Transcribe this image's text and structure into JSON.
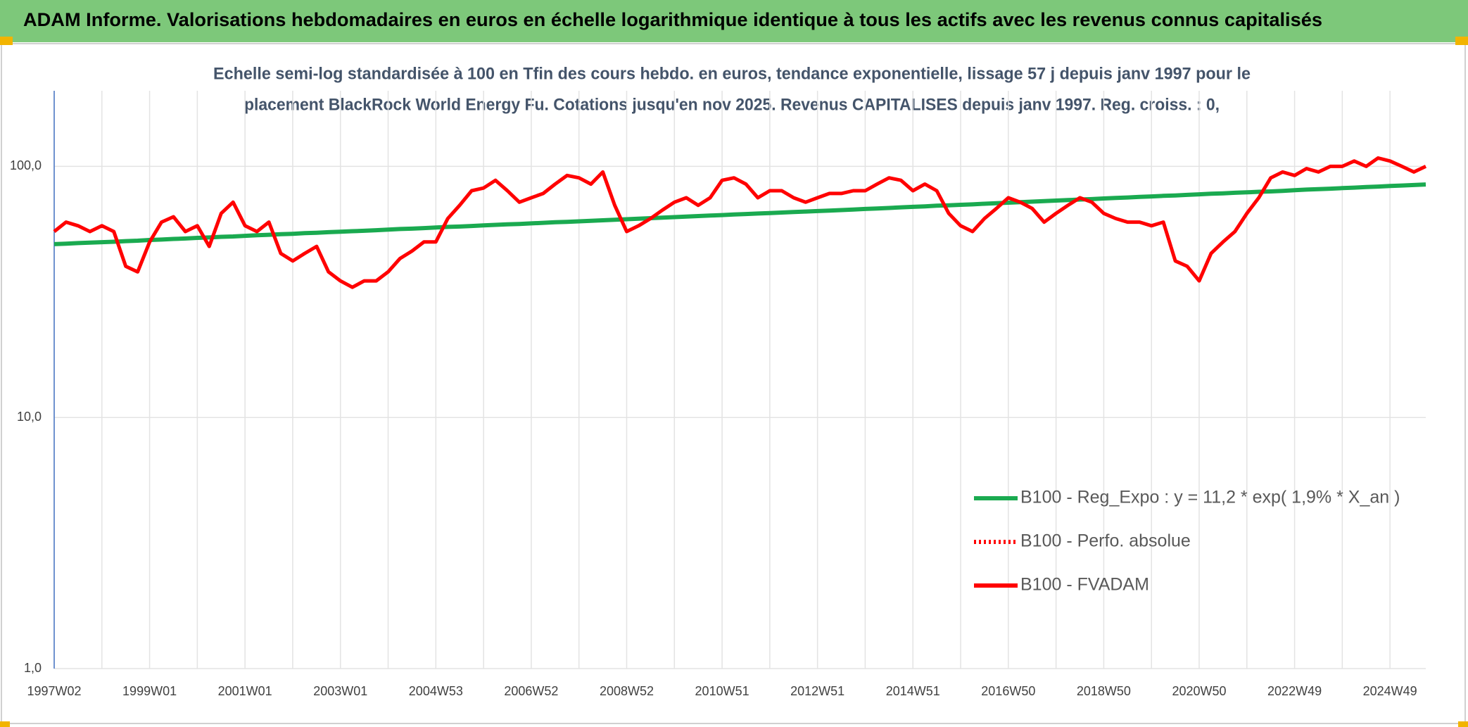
{
  "chart_data": {
    "type": "line",
    "title": "ADAM Informe. Valorisations hebdomadaires en euros en échelle logarithmique identique à tous les actifs avec les revenus connus capitalisés",
    "subtitle": [
      "Echelle semi-log standardisée à 100 en Tfin des cours hebdo. en euros, tendance exponentielle, lissage 57 j depuis janv 1997 pour le",
      "placement BlackRock World Energy Fu. Cotations jusqu'en nov 2025. Revenus CAPITALISES depuis janv 1997. Reg. croiss. : 0,"
    ],
    "categories": [
      "1997W02",
      null,
      null,
      null,
      null,
      null,
      null,
      null,
      "1999W01",
      null,
      null,
      null,
      null,
      null,
      null,
      null,
      "2001W01",
      null,
      null,
      null,
      null,
      null,
      null,
      null,
      "2003W01",
      null,
      null,
      null,
      null,
      null,
      null,
      null,
      "2004W53",
      null,
      null,
      null,
      null,
      null,
      null,
      null,
      "2006W52",
      null,
      null,
      null,
      null,
      null,
      null,
      null,
      "2008W52",
      null,
      null,
      null,
      null,
      null,
      null,
      null,
      "2010W51",
      null,
      null,
      null,
      null,
      null,
      null,
      null,
      "2012W51",
      null,
      null,
      null,
      null,
      null,
      null,
      null,
      "2014W51",
      null,
      null,
      null,
      null,
      null,
      null,
      null,
      "2016W50",
      null,
      null,
      null,
      null,
      null,
      null,
      null,
      "2018W50",
      null,
      null,
      null,
      null,
      null,
      null,
      null,
      "2020W50",
      null,
      null,
      null,
      null,
      null,
      null,
      null,
      "2022W49",
      null,
      null,
      null,
      null,
      null,
      null,
      null,
      "2024W49",
      null,
      null,
      null
    ],
    "series": [
      {
        "name": "B100 - Reg_Expo : y = 11,2 * exp( 1,9% *  X_an )",
        "color": "#1aaa50",
        "line_style": "solid",
        "values": [
          49.0,
          49.2,
          49.5,
          49.7,
          49.9,
          50.1,
          50.4,
          50.6,
          50.9,
          51.1,
          51.4,
          51.6,
          51.9,
          52.1,
          52.4,
          52.6,
          52.9,
          53.2,
          53.4,
          53.7,
          53.9,
          54.2,
          54.4,
          54.7,
          54.9,
          55.2,
          55.4,
          55.7,
          56.0,
          56.3,
          56.5,
          56.8,
          57.1,
          57.4,
          57.6,
          57.9,
          58.2,
          58.5,
          58.8,
          59.0,
          59.3,
          59.6,
          59.9,
          60.1,
          60.4,
          60.7,
          61.0,
          61.3,
          61.6,
          61.9,
          62.2,
          62.5,
          62.8,
          63.1,
          63.4,
          63.7,
          64.0,
          64.3,
          64.6,
          64.9,
          65.2,
          65.5,
          65.8,
          66.1,
          66.4,
          66.7,
          67.0,
          67.3,
          67.7,
          68.0,
          68.3,
          68.7,
          69.0,
          69.3,
          69.7,
          70.0,
          70.3,
          70.6,
          71.0,
          71.3,
          71.7,
          72.0,
          72.4,
          72.7,
          73.1,
          73.4,
          73.8,
          74.1,
          74.5,
          74.9,
          75.2,
          75.6,
          75.9,
          76.3,
          76.6,
          77.0,
          77.4,
          77.8,
          78.1,
          78.5,
          78.8,
          79.2,
          79.5,
          79.9,
          80.4,
          80.8,
          81.2,
          81.5,
          81.9,
          82.3,
          82.7,
          83.1,
          83.5,
          83.9,
          84.3,
          84.7
        ]
      },
      {
        "name": "B100 - Perfo. absolue",
        "color": "#ff0000",
        "line_style": "dotted",
        "values": [
          null,
          null,
          null,
          null,
          null,
          null,
          null,
          null,
          null,
          null,
          null,
          null,
          null,
          null,
          null,
          null,
          null,
          null,
          null,
          null,
          null,
          null,
          null,
          null,
          null,
          null,
          null,
          null,
          null,
          null,
          null,
          null,
          null,
          null,
          null,
          null,
          null,
          null,
          null,
          null,
          null,
          null,
          null,
          null,
          null,
          null,
          null,
          null,
          null,
          null,
          null,
          null,
          null,
          null,
          null,
          null,
          null,
          null,
          null,
          null,
          null,
          null,
          null,
          null,
          null,
          null,
          null,
          null,
          null,
          null,
          null,
          null,
          null,
          null,
          null,
          null,
          null,
          null,
          null,
          null,
          null,
          null,
          null,
          null,
          null,
          null,
          null,
          null,
          null,
          null,
          null,
          null,
          null,
          null,
          null,
          null,
          null,
          null,
          null,
          null,
          null,
          null,
          null,
          null,
          null,
          null,
          null,
          null,
          null,
          null,
          null,
          null,
          null,
          null,
          null,
          null
        ]
      },
      {
        "name": "B100 - FVADAM",
        "color": "#ff0000",
        "line_style": "solid",
        "values": [
          55,
          60,
          58,
          55,
          58,
          55,
          40,
          38,
          50,
          60,
          63,
          55,
          58,
          48,
          65,
          72,
          58,
          55,
          60,
          45,
          42,
          45,
          48,
          38,
          35,
          33,
          35,
          35,
          38,
          43,
          46,
          50,
          50,
          62,
          70,
          80,
          82,
          88,
          80,
          72,
          75,
          78,
          85,
          92,
          90,
          85,
          95,
          70,
          55,
          58,
          62,
          67,
          72,
          75,
          70,
          75,
          88,
          90,
          85,
          75,
          80,
          80,
          75,
          72,
          75,
          78,
          78,
          80,
          80,
          85,
          90,
          88,
          80,
          85,
          80,
          65,
          58,
          55,
          62,
          68,
          75,
          72,
          68,
          60,
          65,
          70,
          75,
          72,
          65,
          62,
          60,
          60,
          58,
          60,
          42,
          40,
          35,
          45,
          50,
          55,
          65,
          75,
          90,
          95,
          92,
          98,
          95,
          100,
          100,
          105,
          100,
          108,
          105,
          100,
          95,
          100
        ]
      }
    ],
    "ylim": [
      1,
      200
    ],
    "yticks": [
      {
        "value": 1,
        "label": "1,0"
      },
      {
        "value": 10,
        "label": "10,0"
      },
      {
        "value": 100,
        "label": "100,0"
      }
    ],
    "log_scale": true,
    "grid": true,
    "legend": "lower right"
  }
}
